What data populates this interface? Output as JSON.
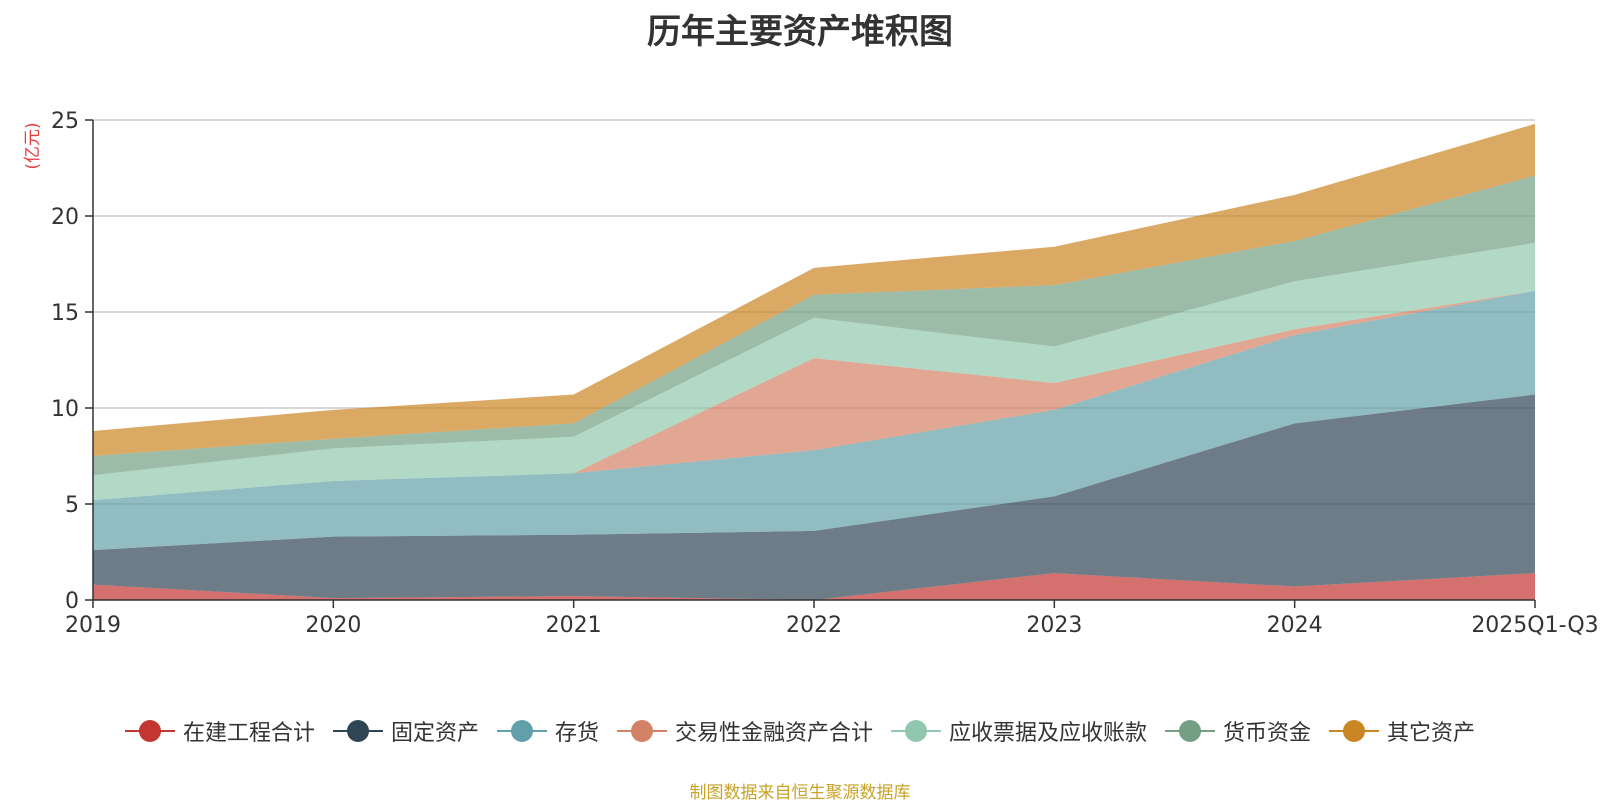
{
  "chart_data": {
    "type": "area",
    "stacked": true,
    "title": "历年主要资产堆积图",
    "ylabel": "(亿元)",
    "xlabel": "",
    "ylim": [
      0,
      25
    ],
    "yticks": [
      0,
      5,
      10,
      15,
      20,
      25
    ],
    "categories": [
      "2019",
      "2020",
      "2021",
      "2022",
      "2023",
      "2024",
      "2025Q1-Q3"
    ],
    "grid": true,
    "legend_position": "bottom",
    "series": [
      {
        "name": "在建工程合计",
        "color": "#c23531",
        "values": [
          0.8,
          0.1,
          0.2,
          0.0,
          1.4,
          0.7,
          1.4
        ]
      },
      {
        "name": "固定资产",
        "color": "#2f4554",
        "values": [
          1.8,
          3.2,
          3.2,
          3.6,
          4.0,
          8.5,
          9.3
        ]
      },
      {
        "name": "存货",
        "color": "#61a0a8",
        "values": [
          2.6,
          2.9,
          3.2,
          4.2,
          4.5,
          4.6,
          5.4
        ]
      },
      {
        "name": "交易性金融资产合计",
        "color": "#d48265",
        "values": [
          0.0,
          0.0,
          0.0,
          4.8,
          1.4,
          0.3,
          0.0
        ]
      },
      {
        "name": "应收票据及应收账款",
        "color": "#91c7ae",
        "values": [
          1.3,
          1.7,
          1.9,
          2.1,
          1.9,
          2.5,
          2.5
        ]
      },
      {
        "name": "货币资金",
        "color": "#749f83",
        "values": [
          1.0,
          0.5,
          0.7,
          1.2,
          3.2,
          2.1,
          3.5
        ]
      },
      {
        "name": "其它资产",
        "color": "#ca8622",
        "values": [
          1.3,
          1.5,
          1.5,
          1.4,
          2.0,
          2.4,
          2.7
        ]
      }
    ]
  },
  "source_note": "制图数据来自恒生聚源数据库"
}
